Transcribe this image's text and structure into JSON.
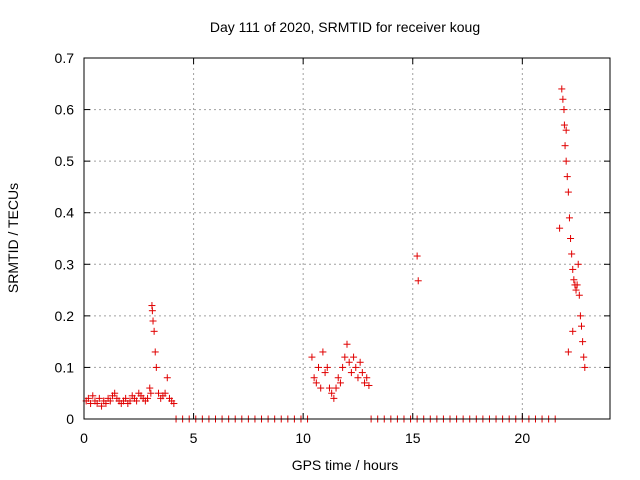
{
  "chart_data": {
    "type": "scatter",
    "title": "Day 111 of 2020, SRMTID for receiver koug",
    "xlabel": "GPS time / hours",
    "ylabel": "SRMTID / TECUs",
    "xlim": [
      0,
      24
    ],
    "ylim": [
      0,
      0.7
    ],
    "xticks": [
      0,
      5,
      10,
      15,
      20
    ],
    "yticks": [
      0,
      0.1,
      0.2,
      0.3,
      0.4,
      0.5,
      0.6,
      0.7
    ],
    "xtick_labels": [
      "0",
      "5",
      "10",
      "15",
      "20"
    ],
    "ytick_labels": [
      "0",
      "0.1",
      "0.2",
      "0.3",
      "0.4",
      "0.5",
      "0.6",
      "0.7"
    ],
    "grid": true,
    "marker": "+",
    "color": "#e00000",
    "series": [
      {
        "name": "SRMTID",
        "x": [
          0.1,
          0.2,
          0.3,
          0.4,
          0.5,
          0.6,
          0.7,
          0.8,
          0.9,
          1.0,
          1.1,
          1.2,
          1.3,
          1.4,
          1.5,
          1.6,
          1.7,
          1.8,
          1.9,
          2.0,
          2.1,
          2.2,
          2.3,
          2.4,
          2.5,
          2.6,
          2.7,
          2.8,
          2.9,
          3.0,
          3.05,
          3.1,
          3.12,
          3.15,
          3.2,
          3.25,
          3.3,
          3.4,
          3.5,
          3.6,
          3.7,
          3.8,
          3.9,
          4.0,
          4.1,
          4.2,
          4.5,
          4.8,
          5.1,
          5.4,
          5.7,
          6.0,
          6.3,
          6.6,
          6.9,
          7.2,
          7.5,
          7.8,
          8.1,
          8.4,
          8.7,
          9.0,
          9.3,
          9.6,
          9.9,
          10.2,
          10.4,
          10.5,
          10.6,
          10.7,
          10.8,
          10.9,
          11.0,
          11.1,
          11.2,
          11.3,
          11.4,
          11.5,
          11.6,
          11.7,
          11.8,
          11.9,
          12.0,
          12.1,
          12.2,
          12.3,
          12.4,
          12.5,
          12.6,
          12.7,
          12.8,
          12.9,
          13.0,
          13.1,
          13.4,
          13.7,
          14.0,
          14.3,
          14.6,
          14.9,
          15.2,
          15.5,
          15.8,
          16.1,
          16.4,
          16.7,
          17.0,
          17.3,
          17.6,
          17.9,
          18.2,
          18.5,
          18.8,
          19.1,
          19.4,
          19.7,
          20.0,
          20.3,
          20.6,
          20.9,
          21.2,
          21.5,
          15.2,
          15.25,
          21.7,
          21.8,
          21.85,
          21.9,
          21.92,
          21.95,
          22.0,
          22.05,
          22.1,
          22.15,
          22.2,
          22.25,
          22.3,
          22.35,
          22.4,
          22.45,
          22.5,
          22.55,
          22.6,
          22.65,
          22.7,
          22.75,
          22.8,
          22.85,
          22.3,
          22.0,
          22.1
        ],
        "y": [
          0.035,
          0.04,
          0.03,
          0.045,
          0.035,
          0.03,
          0.04,
          0.025,
          0.035,
          0.03,
          0.04,
          0.035,
          0.045,
          0.05,
          0.04,
          0.035,
          0.03,
          0.035,
          0.04,
          0.03,
          0.035,
          0.045,
          0.04,
          0.035,
          0.05,
          0.045,
          0.04,
          0.035,
          0.04,
          0.06,
          0.05,
          0.22,
          0.21,
          0.19,
          0.17,
          0.13,
          0.1,
          0.05,
          0.04,
          0.045,
          0.05,
          0.08,
          0.04,
          0.035,
          0.03,
          0,
          0,
          0,
          0,
          0,
          0,
          0,
          0,
          0,
          0,
          0,
          0,
          0,
          0,
          0,
          0,
          0,
          0,
          0,
          0,
          0,
          0.12,
          0.08,
          0.07,
          0.1,
          0.06,
          0.13,
          0.09,
          0.1,
          0.06,
          0.05,
          0.04,
          0.06,
          0.08,
          0.07,
          0.1,
          0.12,
          0.145,
          0.11,
          0.09,
          0.12,
          0.1,
          0.08,
          0.11,
          0.09,
          0.07,
          0.08,
          0.065,
          0,
          0,
          0,
          0,
          0,
          0,
          0,
          0,
          0,
          0,
          0,
          0,
          0,
          0,
          0,
          0,
          0,
          0,
          0,
          0,
          0,
          0,
          0,
          0,
          0,
          0,
          0,
          0,
          0,
          0.316,
          0.268,
          0.37,
          0.64,
          0.62,
          0.6,
          0.57,
          0.53,
          0.5,
          0.47,
          0.44,
          0.39,
          0.35,
          0.32,
          0.29,
          0.27,
          0.26,
          0.25,
          0.26,
          0.3,
          0.24,
          0.2,
          0.18,
          0.15,
          0.12,
          0.1,
          0.17,
          0.56,
          0.13
        ]
      }
    ]
  }
}
